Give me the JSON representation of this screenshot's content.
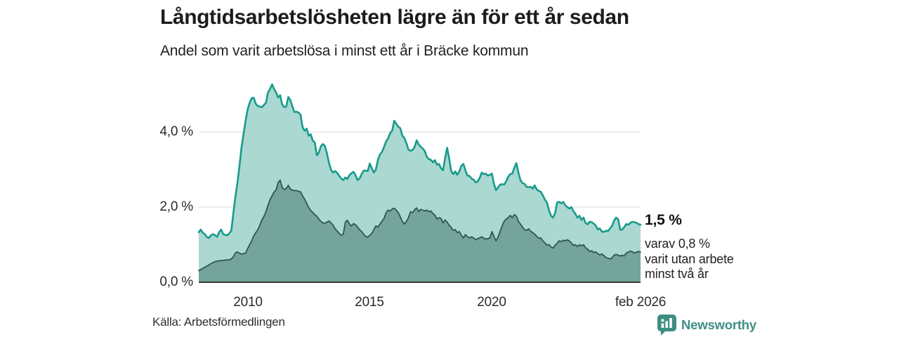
{
  "title": "Långtidsarbetslösheten lägre än för ett år sedan",
  "subtitle": "Andel som varit arbetslösa i minst ett år i Bräcke kommun",
  "source": "Källa: Arbetsförmedlingen",
  "branding": {
    "name": "Newsworthy",
    "color": "#3e8e84"
  },
  "annotation": {
    "headline": "1,5 %",
    "lines": [
      "varav 0,8 %",
      "varit utan arbete",
      "minst två år"
    ]
  },
  "colors": {
    "line_1yr": "#179b8b",
    "fill_1yr": "#abd8d1",
    "line_2yr": "#2d5750",
    "fill_2yr": "#74a49c",
    "gridline": "#dcdcdc",
    "axis": "#333937",
    "text": "#2b2b2b"
  },
  "chart_data": {
    "type": "area",
    "unit": "%",
    "frequency": "monthly",
    "x_start": "2008-01",
    "x_end": "2026-02",
    "ylim": [
      0,
      5.5
    ],
    "grid_values": [
      2.0,
      4.0
    ],
    "y_ticks": [
      {
        "label": "4,0 %",
        "value": 4.0
      },
      {
        "label": "2,0 %",
        "value": 2.0
      },
      {
        "label": "0,0 %",
        "value": 0.0
      }
    ],
    "x_ticks": [
      {
        "label": "2010",
        "month_index": 24
      },
      {
        "label": "2015",
        "month_index": 84
      },
      {
        "label": "2020",
        "month_index": 144
      },
      {
        "label": "feb 2026",
        "month_index": 217
      }
    ],
    "series": [
      {
        "name": "Arbetslösa minst ett år",
        "final_label": "1,5 %",
        "values": [
          1.33,
          1.4,
          1.31,
          1.28,
          1.2,
          1.18,
          1.25,
          1.28,
          1.25,
          1.21,
          1.33,
          1.4,
          1.28,
          1.26,
          1.25,
          1.3,
          1.38,
          1.85,
          2.28,
          2.65,
          3.1,
          3.6,
          3.95,
          4.3,
          4.6,
          4.78,
          4.9,
          4.91,
          4.75,
          4.69,
          4.68,
          4.66,
          4.72,
          4.78,
          5.05,
          5.15,
          5.27,
          5.15,
          5.05,
          4.92,
          4.98,
          4.73,
          4.66,
          4.68,
          4.93,
          4.85,
          4.68,
          4.53,
          4.54,
          4.52,
          4.46,
          4.13,
          4.03,
          4.09,
          3.9,
          3.94,
          3.77,
          3.72,
          3.38,
          3.45,
          3.62,
          3.68,
          3.62,
          3.42,
          3.17,
          2.99,
          2.92,
          2.96,
          2.91,
          2.83,
          2.76,
          2.72,
          2.79,
          2.75,
          2.85,
          2.9,
          2.94,
          2.85,
          2.72,
          2.76,
          2.88,
          2.97,
          2.97,
          2.96,
          3.16,
          3.03,
          2.92,
          3.0,
          3.26,
          3.4,
          3.47,
          3.6,
          3.75,
          3.83,
          3.97,
          4.04,
          4.3,
          4.22,
          4.14,
          4.1,
          3.9,
          3.84,
          3.7,
          3.53,
          3.5,
          3.52,
          3.6,
          3.78,
          3.67,
          3.61,
          3.56,
          3.5,
          3.34,
          3.28,
          3.26,
          3.19,
          3.25,
          3.13,
          3.15,
          3.04,
          2.98,
          3.3,
          3.58,
          3.3,
          2.96,
          2.88,
          2.95,
          2.86,
          2.95,
          3.1,
          3.15,
          2.98,
          2.84,
          2.83,
          2.76,
          2.73,
          2.66,
          2.68,
          2.78,
          2.92,
          2.88,
          2.89,
          2.84,
          2.86,
          2.89,
          2.62,
          2.45,
          2.52,
          2.6,
          2.61,
          2.6,
          2.69,
          2.81,
          2.88,
          2.89,
          3.05,
          3.17,
          2.92,
          2.72,
          2.64,
          2.62,
          2.54,
          2.53,
          2.54,
          2.49,
          2.58,
          2.47,
          2.43,
          2.41,
          2.31,
          2.2,
          2.12,
          1.92,
          1.77,
          1.72,
          1.84,
          2.12,
          2.14,
          2.1,
          2.14,
          2.05,
          2.0,
          1.96,
          2.0,
          1.9,
          1.82,
          1.72,
          1.77,
          1.66,
          1.72,
          1.58,
          1.54,
          1.61,
          1.6,
          1.56,
          1.51,
          1.41,
          1.43,
          1.35,
          1.34,
          1.37,
          1.36,
          1.43,
          1.5,
          1.64,
          1.72,
          1.68,
          1.4,
          1.4,
          1.47,
          1.55,
          1.53,
          1.58,
          1.61,
          1.6,
          1.58,
          1.55,
          1.53
        ]
      },
      {
        "name": "Arbetslösa minst två år",
        "final_label": "0,8 %",
        "values": [
          0.31,
          0.34,
          0.37,
          0.4,
          0.43,
          0.46,
          0.5,
          0.52,
          0.55,
          0.56,
          0.57,
          0.58,
          0.58,
          0.59,
          0.59,
          0.6,
          0.62,
          0.68,
          0.78,
          0.81,
          0.77,
          0.75,
          0.76,
          0.78,
          0.9,
          1.0,
          1.1,
          1.24,
          1.32,
          1.4,
          1.52,
          1.66,
          1.75,
          1.88,
          2.05,
          2.2,
          2.3,
          2.4,
          2.46,
          2.65,
          2.72,
          2.52,
          2.47,
          2.5,
          2.58,
          2.48,
          2.45,
          2.44,
          2.44,
          2.42,
          2.41,
          2.3,
          2.21,
          2.1,
          1.99,
          1.91,
          1.86,
          1.8,
          1.76,
          1.68,
          1.62,
          1.58,
          1.57,
          1.6,
          1.63,
          1.58,
          1.52,
          1.42,
          1.36,
          1.3,
          1.25,
          1.28,
          1.6,
          1.65,
          1.55,
          1.5,
          1.56,
          1.53,
          1.47,
          1.4,
          1.35,
          1.28,
          1.22,
          1.2,
          1.25,
          1.3,
          1.4,
          1.5,
          1.47,
          1.55,
          1.62,
          1.7,
          1.85,
          1.92,
          1.9,
          1.95,
          1.97,
          1.92,
          1.85,
          1.74,
          1.62,
          1.55,
          1.62,
          1.72,
          1.88,
          1.85,
          1.93,
          1.98,
          1.88,
          1.94,
          1.92,
          1.9,
          1.92,
          1.88,
          1.9,
          1.83,
          1.79,
          1.68,
          1.72,
          1.7,
          1.58,
          1.66,
          1.6,
          1.52,
          1.46,
          1.38,
          1.4,
          1.32,
          1.35,
          1.25,
          1.18,
          1.27,
          1.21,
          1.18,
          1.21,
          1.18,
          1.13,
          1.16,
          1.18,
          1.21,
          1.17,
          1.15,
          1.16,
          1.18,
          1.35,
          1.22,
          1.1,
          1.2,
          1.35,
          1.5,
          1.62,
          1.68,
          1.72,
          1.78,
          1.72,
          1.8,
          1.76,
          1.62,
          1.55,
          1.47,
          1.4,
          1.38,
          1.42,
          1.36,
          1.32,
          1.28,
          1.22,
          1.17,
          1.18,
          1.1,
          1.05,
          0.99,
          1.0,
          0.94,
          0.91,
          0.98,
          1.04,
          1.1,
          1.08,
          1.12,
          1.1,
          1.13,
          1.1,
          1.05,
          0.98,
          1.0,
          0.95,
          1.0,
          0.97,
          1.0,
          0.92,
          0.88,
          0.82,
          0.84,
          0.79,
          0.81,
          0.76,
          0.73,
          0.75,
          0.71,
          0.66,
          0.64,
          0.62,
          0.65,
          0.72,
          0.74,
          0.72,
          0.7,
          0.72,
          0.7,
          0.78,
          0.8,
          0.83,
          0.81,
          0.78,
          0.8,
          0.82,
          0.8
        ]
      }
    ]
  }
}
